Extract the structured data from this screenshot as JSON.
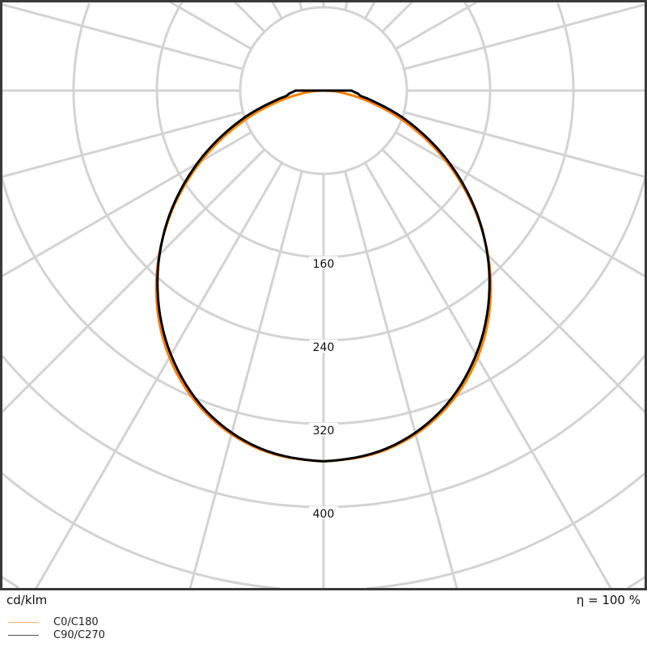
{
  "chart_data": {
    "type": "polar",
    "unit_label": "cd/klm",
    "efficiency_label": "η = 100 %",
    "ring_step": 80,
    "ring_labels": [
      "160",
      "240",
      "320",
      "400"
    ],
    "ring_values": [
      80,
      160,
      240,
      320,
      400,
      480,
      560
    ],
    "radial_line_step_deg": 15,
    "gamma_deg": [
      0,
      10,
      20,
      30,
      40,
      50,
      60,
      70,
      80,
      85,
      90
    ],
    "series": [
      {
        "name": "C0/C180",
        "color": "#ff8000",
        "values": [
          356,
          350,
          330,
          296,
          250,
          195,
          136,
          78,
          30,
          14,
          0
        ]
      },
      {
        "name": "C90/C270",
        "color": "#000000",
        "values": [
          356,
          349,
          328,
          293,
          248,
          196,
          140,
          86,
          42,
          33,
          27
        ]
      }
    ],
    "legend": [
      {
        "label": "C0/C180",
        "color": "#ffb366"
      },
      {
        "label": "C90/C270",
        "color": "#555555"
      }
    ],
    "grid": true
  }
}
